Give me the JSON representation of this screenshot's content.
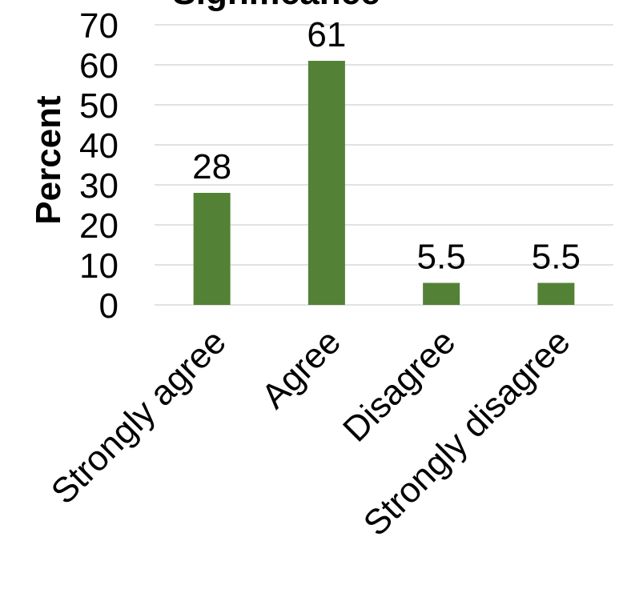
{
  "chart_data": {
    "type": "bar",
    "title": "Significance",
    "categories": [
      "Strongly agree",
      "Agree",
      "Disagree",
      "Strongly disagree"
    ],
    "values": [
      28,
      61,
      5.5,
      5.5
    ],
    "data_labels": [
      "28",
      "61",
      "5.5",
      "5.5"
    ],
    "xlabel": "",
    "ylabel": "Percent",
    "ylim": [
      0,
      70
    ],
    "yticks": [
      0,
      10,
      20,
      30,
      40,
      50,
      60,
      70
    ],
    "grid": true,
    "legend": "none",
    "bar_color": "#538135"
  }
}
